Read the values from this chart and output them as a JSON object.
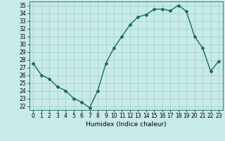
{
  "x": [
    0,
    1,
    2,
    3,
    4,
    5,
    6,
    7,
    8,
    9,
    10,
    11,
    12,
    13,
    14,
    15,
    16,
    17,
    18,
    19,
    20,
    21,
    22,
    23
  ],
  "y": [
    27.5,
    26.0,
    25.5,
    24.5,
    24.0,
    23.0,
    22.5,
    21.8,
    24.0,
    27.5,
    29.5,
    31.0,
    32.5,
    33.5,
    33.8,
    34.5,
    34.5,
    34.3,
    35.0,
    34.2,
    31.0,
    29.5,
    26.5,
    27.8
  ],
  "line_color": "#1a6b5a",
  "bg_color": "#c8eae8",
  "grid_color": "#9ecfcc",
  "xlabel": "Humidex (Indice chaleur)",
  "ylim": [
    21.5,
    35.5
  ],
  "xlim": [
    -0.5,
    23.5
  ],
  "yticks": [
    22,
    23,
    24,
    25,
    26,
    27,
    28,
    29,
    30,
    31,
    32,
    33,
    34,
    35
  ],
  "xticks": [
    0,
    1,
    2,
    3,
    4,
    5,
    6,
    7,
    8,
    9,
    10,
    11,
    12,
    13,
    14,
    15,
    16,
    17,
    18,
    19,
    20,
    21,
    22,
    23
  ],
  "marker": "D",
  "marker_size": 2.0,
  "line_width": 1.0,
  "font_size": 6.5,
  "tick_label_size": 5.5
}
